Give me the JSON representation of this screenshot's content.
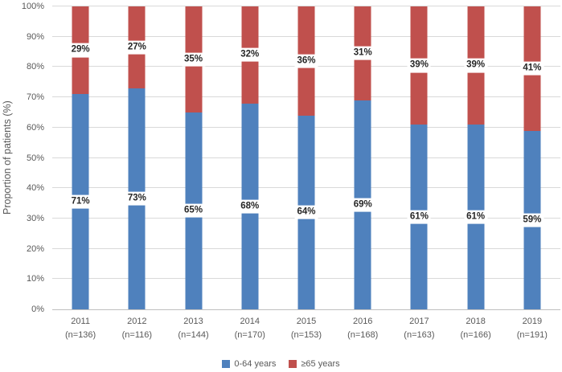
{
  "chart_data": {
    "type": "bar",
    "stacked": true,
    "title": "",
    "xlabel": "",
    "ylabel": "Proportion of patients (%)",
    "ylim": [
      0,
      100
    ],
    "ytick_step": 10,
    "ytick_labels": [
      "0%",
      "10%",
      "20%",
      "30%",
      "40%",
      "50%",
      "60%",
      "70%",
      "80%",
      "90%",
      "100%"
    ],
    "grid": true,
    "legend_position": "bottom",
    "categories": [
      "2011",
      "2012",
      "2013",
      "2014",
      "2015",
      "2016",
      "2017",
      "2018",
      "2019"
    ],
    "category_sublabels": [
      "(n=136)",
      "(n=116)",
      "(n=144)",
      "(n=170)",
      "(n=153)",
      "(n=168)",
      "(n=163)",
      "(n=166)",
      "(n=191)"
    ],
    "series": [
      {
        "name": "0-64 years",
        "color": "#4F81BD",
        "values": [
          71,
          73,
          65,
          68,
          64,
          69,
          61,
          61,
          59
        ],
        "labels": [
          "71%",
          "73%",
          "65%",
          "68%",
          "64%",
          "69%",
          "61%",
          "61%",
          "59%"
        ]
      },
      {
        "name": "≥65 years",
        "color": "#C0504D",
        "values": [
          29,
          27,
          35,
          32,
          36,
          31,
          39,
          39,
          41
        ],
        "labels": [
          "29%",
          "27%",
          "35%",
          "32%",
          "36%",
          "31%",
          "39%",
          "39%",
          "41%"
        ]
      }
    ]
  },
  "colors": {
    "background": "#FFFFFF",
    "gridline": "#D9D9D9",
    "axis_line": "#BFBFBF",
    "tick_text": "#595959",
    "data_label_text": "#262626"
  }
}
